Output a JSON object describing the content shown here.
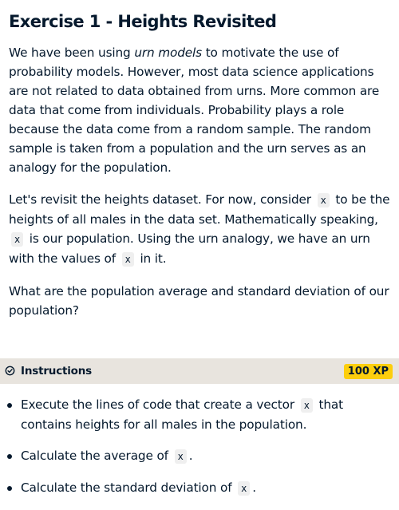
{
  "exercise": {
    "title": "Exercise 1 - Heights Revisited",
    "p1": {
      "before": "We have been using ",
      "emph": "urn models",
      "after": " to motivate the use of probability models. However, most data science applications are not related to data obtained from urns. More common are data that come from individuals. Probability plays a role because the data come from a random sample. The random sample is taken from a population and the urn serves as an analogy for the population."
    },
    "p2": {
      "t1": "Let's revisit the heights dataset. For now, consider ",
      "code1": "x",
      "t2": " to be the heights of all males in the data set. Mathematically speaking, ",
      "code2": "x",
      "t3": " is our population. Using the urn analogy, we have an urn with the values of ",
      "code3": "x",
      "t4": " in it."
    },
    "p3": "What are the population average and standard deviation of our population?"
  },
  "instructions": {
    "label": "Instructions",
    "xp": "100 XP",
    "icon": "check-circle-icon",
    "steps": [
      {
        "t1": "Execute the lines of code that create a vector ",
        "code": "x",
        "t2": " that contains heights for all males in the population."
      },
      {
        "t1": "Calculate the average of ",
        "code": "x",
        "t2": "."
      },
      {
        "t1": "Calculate the standard deviation of ",
        "code": "x",
        "t2": "."
      }
    ]
  },
  "colors": {
    "text": "#05192d",
    "bar": "#e8e4de",
    "xp_badge": "#fcce0d",
    "code_bg": "#efefef"
  }
}
